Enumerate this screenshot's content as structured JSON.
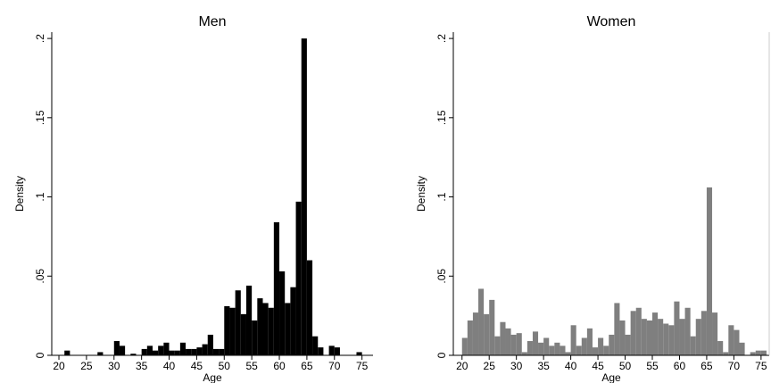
{
  "chart_data": [
    {
      "type": "histogram",
      "title": "Men",
      "xlabel": "Age",
      "ylabel": "Density",
      "color": "#000000",
      "bins": [
        21,
        22,
        23,
        24,
        25,
        26,
        27,
        28,
        29,
        30,
        31,
        32,
        33,
        34,
        35,
        36,
        37,
        38,
        39,
        40,
        41,
        42,
        43,
        44,
        45,
        46,
        47,
        48,
        49,
        50,
        51,
        52,
        53,
        54,
        55,
        56,
        57,
        58,
        59,
        60,
        61,
        62,
        63,
        64,
        65,
        66,
        67,
        68,
        69,
        70,
        71,
        72,
        73,
        74,
        75,
        76
      ],
      "values": [
        0.003,
        0,
        0,
        0,
        0,
        0,
        0.002,
        0,
        0,
        0.009,
        0.006,
        0,
        0.001,
        0,
        0.004,
        0.006,
        0.003,
        0.006,
        0.008,
        0.003,
        0.003,
        0.008,
        0.004,
        0.004,
        0.005,
        0.007,
        0.013,
        0.004,
        0.004,
        0.031,
        0.03,
        0.041,
        0.026,
        0.044,
        0.022,
        0.036,
        0.033,
        0.03,
        0.084,
        0.053,
        0.033,
        0.043,
        0.097,
        0.2,
        0.06,
        0.012,
        0.005,
        0,
        0.006,
        0.005,
        0,
        0,
        0,
        0.002,
        0
      ],
      "xlim": [
        18.7,
        77
      ],
      "xticks": [
        20,
        25,
        30,
        35,
        40,
        45,
        50,
        55,
        60,
        65,
        70,
        75
      ],
      "ylim": [
        0,
        0.204
      ],
      "yticks": [
        0,
        {
          "value": 0.05,
          "label": ".05"
        },
        {
          "value": 0.1,
          "label": ".1"
        },
        {
          "value": 0.15,
          "label": ".15"
        },
        {
          "value": 0.2,
          "label": ".2"
        }
      ]
    },
    {
      "type": "histogram",
      "title": "Women",
      "xlabel": "Age",
      "ylabel": "Density",
      "color": "#7f7f7f",
      "bins": [
        20,
        21,
        22,
        23,
        24,
        25,
        26,
        27,
        28,
        29,
        30,
        31,
        32,
        33,
        34,
        35,
        36,
        37,
        38,
        39,
        40,
        41,
        42,
        43,
        44,
        45,
        46,
        47,
        48,
        49,
        50,
        51,
        52,
        53,
        54,
        55,
        56,
        57,
        58,
        59,
        60,
        61,
        62,
        63,
        64,
        65,
        66,
        67,
        68,
        69,
        70,
        71,
        72,
        73,
        74,
        75,
        76
      ],
      "values": [
        0.011,
        0.022,
        0.027,
        0.042,
        0.026,
        0.035,
        0.012,
        0.021,
        0.017,
        0.013,
        0.014,
        0.002,
        0.009,
        0.015,
        0.008,
        0.011,
        0.006,
        0.008,
        0.006,
        0.002,
        0.019,
        0.006,
        0.011,
        0.017,
        0.005,
        0.011,
        0.006,
        0.013,
        0.033,
        0.022,
        0.013,
        0.028,
        0.03,
        0.023,
        0.022,
        0.027,
        0.023,
        0.02,
        0.019,
        0.034,
        0.023,
        0.03,
        0.012,
        0.023,
        0.028,
        0.106,
        0.027,
        0.009,
        0.002,
        0.019,
        0.016,
        0.008,
        0,
        0.002,
        0.003,
        0.003
      ],
      "xlim": [
        18.4,
        76.5
      ],
      "xticks": [
        20,
        25,
        30,
        35,
        40,
        45,
        50,
        55,
        60,
        65,
        70,
        75
      ],
      "ylim": [
        0,
        0.204
      ],
      "yticks": [
        0,
        {
          "value": 0.05,
          "label": ".05"
        },
        {
          "value": 0.1,
          "label": ".1"
        },
        {
          "value": 0.15,
          "label": ".15"
        },
        {
          "value": 0.2,
          "label": ".2"
        }
      ]
    }
  ]
}
